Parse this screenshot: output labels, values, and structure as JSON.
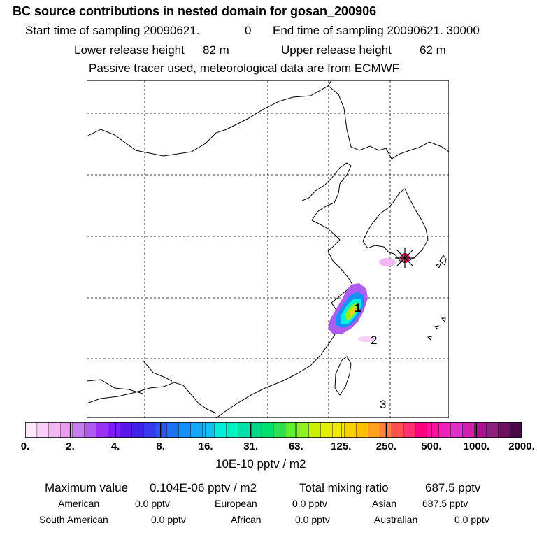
{
  "header": {
    "title": "BC  source contributions in nested domain for gosan_200906",
    "start_label": "Start time of sampling 20090621.",
    "start_value": "0",
    "end_label": "End time of sampling 20090621. 30000",
    "lower_label": "Lower release height",
    "lower_value": "82 m",
    "upper_label": "Upper release height",
    "upper_value": "62 m",
    "tracer_note": "Passive tracer used, meteorological data are from ECMWF"
  },
  "map": {
    "labels": [
      "1",
      "2",
      "3"
    ]
  },
  "chart_data": {
    "type": "heatmap",
    "title": "BC  source contributions in nested domain for gosan_200906",
    "colorbar": {
      "unit_label": "10E-10 pptv / m2",
      "tick_labels": [
        "0.",
        "2.",
        "4.",
        "8.",
        "16.",
        "31.",
        "63.",
        "125.",
        "250.",
        "500.",
        "1000.",
        "2000."
      ],
      "colors": [
        "#fde8fb",
        "#f8d0f6",
        "#f2b6f2",
        "#eb9cf0",
        "#c77cf0",
        "#b05cf0",
        "#9b2ff2",
        "#7a1ff0",
        "#5a18e8",
        "#4320ea",
        "#3838ee",
        "#2d55f3",
        "#1f72f6",
        "#1490f8",
        "#13a8f7",
        "#12c0f2",
        "#00eee0",
        "#00f2c0",
        "#00e0a8",
        "#00d888",
        "#00e070",
        "#30e050",
        "#60ee30",
        "#90f020",
        "#c8f000",
        "#e0f000",
        "#f0e800",
        "#f8d000",
        "#fcc000",
        "#ffa020",
        "#ff8040",
        "#ff5050",
        "#ff3070",
        "#ff0080",
        "#ff10a0",
        "#f020c0",
        "#e030c8",
        "#d020b0",
        "#b01090",
        "#902080",
        "#701060",
        "#4a0848"
      ]
    },
    "receptor": "gosan"
  },
  "summary": {
    "max_label": "Maximum value",
    "max_value": "0.104E-06 pptv / m2",
    "total_label": "Total mixing ratio",
    "total_value": "687.5 pptv",
    "regions": [
      {
        "name": "American",
        "value": "0.0 pptv"
      },
      {
        "name": "European",
        "value": "0.0 pptv"
      },
      {
        "name": "Asian",
        "value": "687.5 pptv"
      },
      {
        "name": "South American",
        "value": "0.0 pptv"
      },
      {
        "name": "African",
        "value": "0.0 pptv"
      },
      {
        "name": "Australian",
        "value": "0.0 pptv"
      }
    ]
  }
}
